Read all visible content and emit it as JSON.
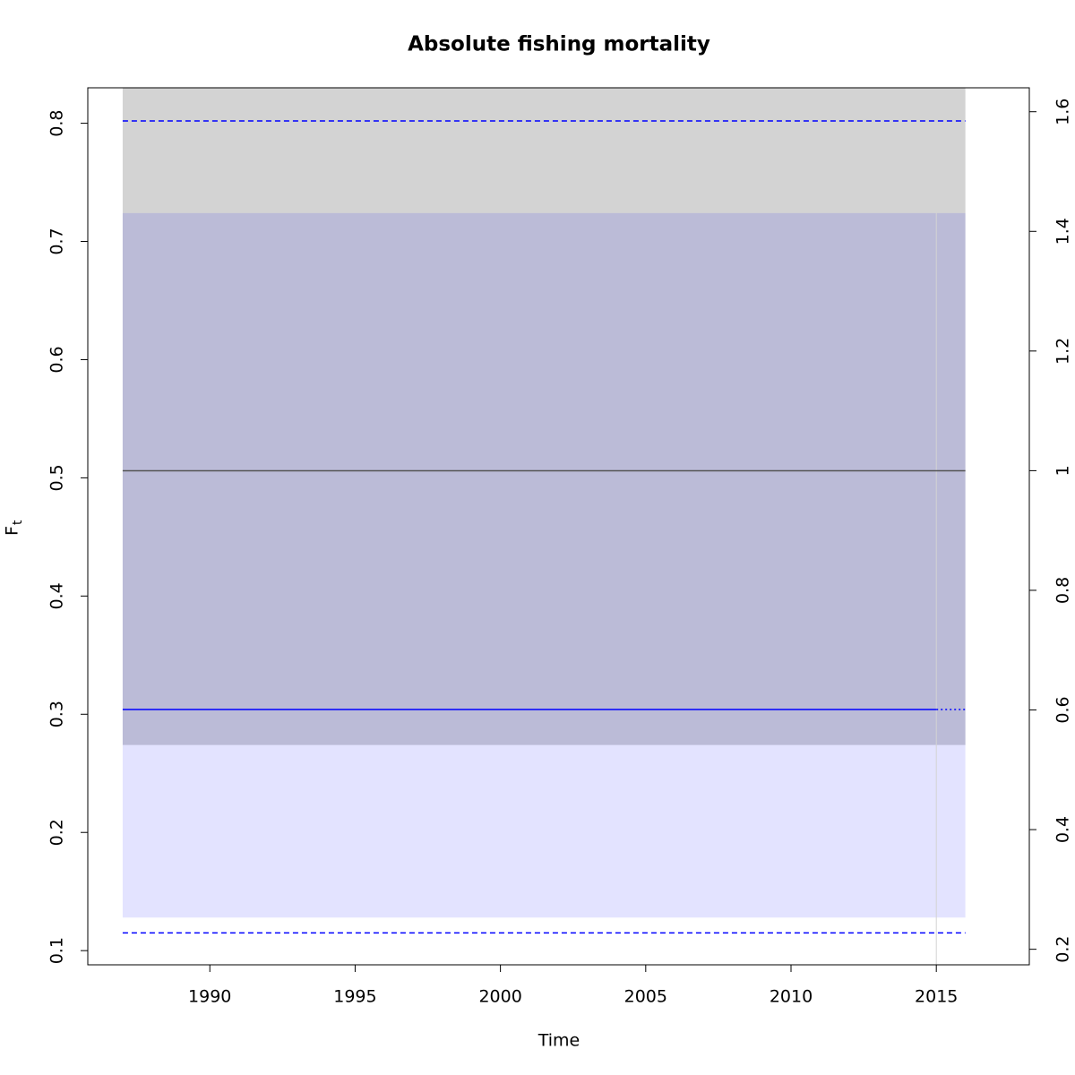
{
  "chart_data": {
    "type": "line",
    "title": "Absolute fishing mortality",
    "xlabel": "Time",
    "ylabel": "F",
    "ylabel_subscript": "t",
    "xlim": [
      1985.8,
      2018.2
    ],
    "xticks": [
      1990,
      1995,
      2000,
      2005,
      2010,
      2015
    ],
    "ylim": [
      0.088,
      0.83
    ],
    "yticks": [
      0.1,
      0.2,
      0.3,
      0.4,
      0.5,
      0.6,
      0.7,
      0.8
    ],
    "y2lim": [
      0.174,
      1.64
    ],
    "y2ticks": [
      0.2,
      0.4,
      0.6,
      0.8,
      1,
      1.2,
      1.4,
      1.6
    ],
    "vline": {
      "x": 2015,
      "color": "#d3d3d3"
    },
    "bands": [
      {
        "x": [
          1987,
          2016
        ],
        "lower": [
          0.274,
          0.274
        ],
        "upper": [
          0.83,
          0.83
        ],
        "color": "#d3d3d3"
      },
      {
        "x": [
          1987,
          2016
        ],
        "lower": [
          0.128,
          0.128
        ],
        "upper": [
          0.724,
          0.724
        ],
        "color": "rgba(0,0,255,0.11)"
      }
    ],
    "series": [
      {
        "x": [
          1987,
          2016
        ],
        "values": [
          0.506,
          0.506
        ],
        "color": "#555555",
        "dash": "solid"
      },
      {
        "x": [
          1987,
          2016
        ],
        "values": [
          0.802,
          0.802
        ],
        "color": "#0000ff",
        "dash": "dashed"
      },
      {
        "x": [
          1987,
          2016
        ],
        "values": [
          0.115,
          0.115
        ],
        "color": "#0000ff",
        "dash": "dashed"
      },
      {
        "x": [
          1987,
          2015
        ],
        "values": [
          0.304,
          0.304
        ],
        "color": "#0000ff",
        "dash": "solid"
      },
      {
        "x": [
          2015,
          2016
        ],
        "values": [
          0.304,
          0.304
        ],
        "color": "#0000ff",
        "dash": "dotted"
      }
    ]
  }
}
